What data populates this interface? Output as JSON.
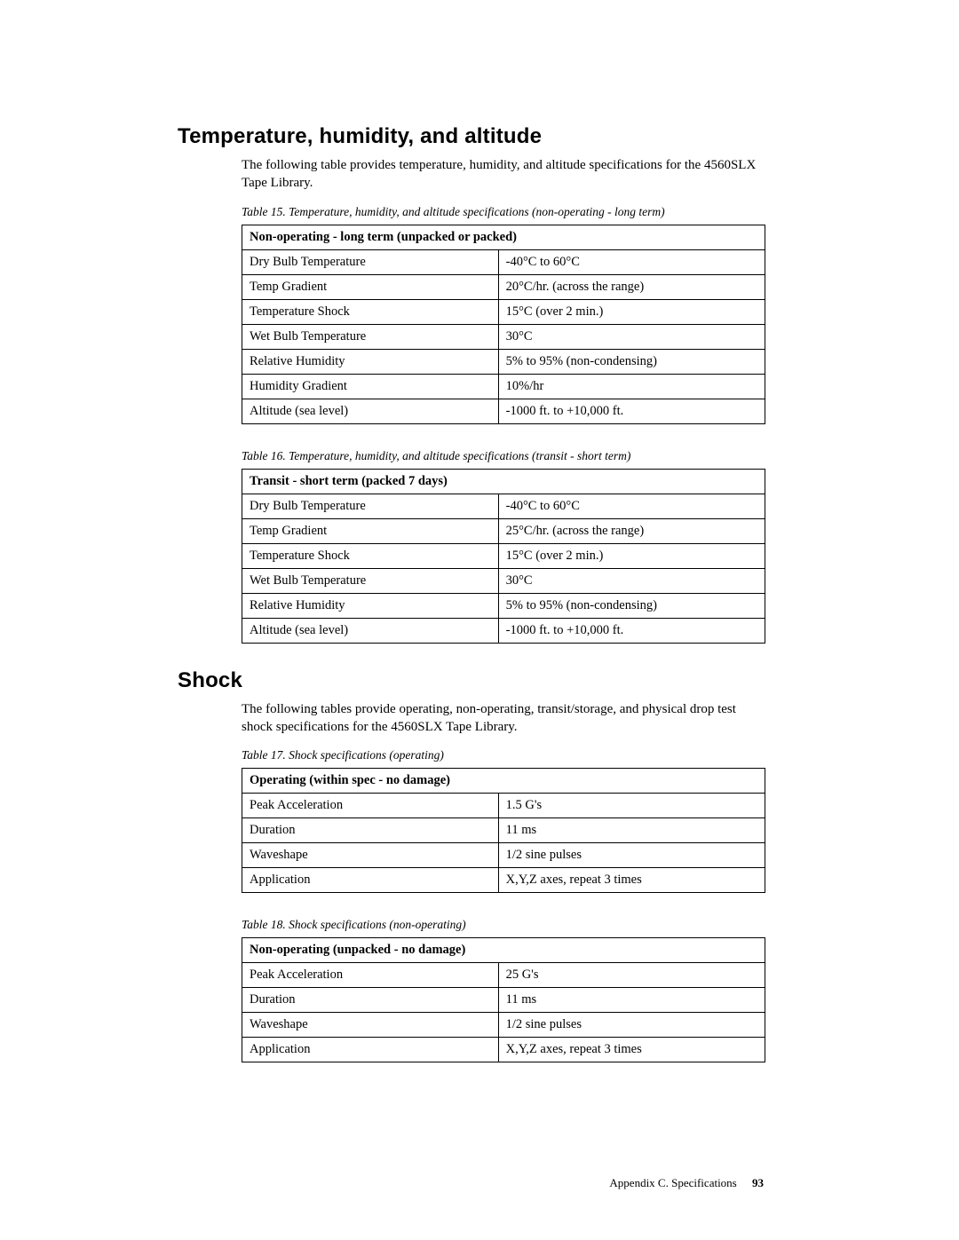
{
  "section1": {
    "title": "Temperature, humidity, and altitude",
    "intro": "The following table provides temperature, humidity, and altitude specifications for the 4560SLX Tape Library."
  },
  "table15": {
    "caption": "Table 15. Temperature, humidity, and altitude specifications (non-operating - long term)",
    "header": "Non-operating - long term (unpacked or packed)",
    "rows": [
      {
        "k": "Dry Bulb Temperature",
        "v": "-40°C to 60°C"
      },
      {
        "k": "Temp Gradient",
        "v": "20°C/hr. (across the range)"
      },
      {
        "k": "Temperature Shock",
        "v": "15°C (over 2 min.)"
      },
      {
        "k": "Wet Bulb Temperature",
        "v": "30°C"
      },
      {
        "k": "Relative Humidity",
        "v": "5% to 95% (non-condensing)"
      },
      {
        "k": "Humidity Gradient",
        "v": "10%/hr"
      },
      {
        "k": "Altitude (sea level)",
        "v": "-1000 ft. to +10,000 ft."
      }
    ]
  },
  "table16": {
    "caption": "Table 16. Temperature, humidity, and altitude specifications (transit - short term)",
    "header": "Transit - short term (packed 7 days)",
    "rows": [
      {
        "k": "Dry Bulb Temperature",
        "v": "-40°C to 60°C"
      },
      {
        "k": "Temp Gradient",
        "v": "25°C/hr. (across the range)"
      },
      {
        "k": "Temperature Shock",
        "v": "15°C (over 2 min.)"
      },
      {
        "k": "Wet Bulb Temperature",
        "v": "30°C"
      },
      {
        "k": "Relative Humidity",
        "v": "5% to 95% (non-condensing)"
      },
      {
        "k": "Altitude (sea level)",
        "v": "-1000 ft. to +10,000 ft."
      }
    ]
  },
  "section2": {
    "title": "Shock",
    "intro": "The following tables provide operating, non-operating, transit/storage, and physical drop test shock specifications for the 4560SLX Tape Library."
  },
  "table17": {
    "caption": "Table 17. Shock specifications (operating)",
    "header": "Operating (within spec - no damage)",
    "rows": [
      {
        "k": "Peak Acceleration",
        "v": "1.5 G's"
      },
      {
        "k": "Duration",
        "v": "11 ms"
      },
      {
        "k": "Waveshape",
        "v": "1/2 sine pulses"
      },
      {
        "k": "Application",
        "v": "X,Y,Z axes, repeat 3 times"
      }
    ]
  },
  "table18": {
    "caption": "Table 18. Shock specifications (non-operating)",
    "header": "Non-operating (unpacked - no damage)",
    "rows": [
      {
        "k": "Peak Acceleration",
        "v": "25 G's"
      },
      {
        "k": "Duration",
        "v": "11 ms"
      },
      {
        "k": "Waveshape",
        "v": "1/2 sine pulses"
      },
      {
        "k": "Application",
        "v": "X,Y,Z axes, repeat 3 times"
      }
    ]
  },
  "footer": {
    "label": "Appendix C. Specifications",
    "page": "93"
  }
}
